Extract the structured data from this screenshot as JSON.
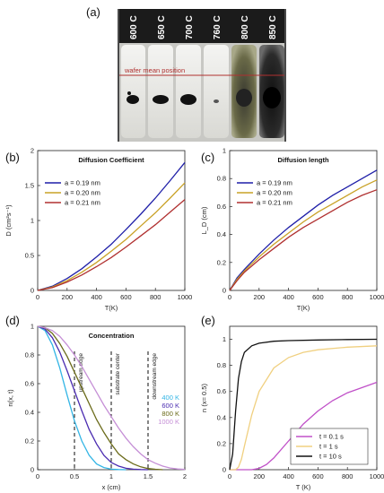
{
  "panels": {
    "a": {
      "letter": "(a)",
      "temperature_labels": [
        "600 C",
        "650 C",
        "700 C",
        "760 C",
        "800 C",
        "850 C"
      ],
      "annotation": "wafer mean position"
    },
    "b": {
      "letter": "(b)"
    },
    "c": {
      "letter": "(c)"
    },
    "d": {
      "letter": "(d)"
    },
    "e": {
      "letter": "(e)"
    }
  },
  "chart_data": [
    {
      "id": "b",
      "type": "line",
      "title": "Diffusion Coefficient",
      "xlabel": "T(K)",
      "ylabel": "D (cm²s⁻¹)",
      "xlim": [
        0,
        1000
      ],
      "ylim": [
        0,
        2
      ],
      "xticks": [
        "0",
        "200",
        "400",
        "600",
        "800",
        "1000"
      ],
      "yticks": [
        "0",
        "0.5",
        "1",
        "1.5",
        "2"
      ],
      "legend": "top-left",
      "series": [
        {
          "name": "a = 0.19 nm",
          "color": "#1f1fa8",
          "x": [
            0,
            100,
            200,
            300,
            400,
            500,
            600,
            700,
            800,
            900,
            1000
          ],
          "y": [
            0,
            0.06,
            0.17,
            0.31,
            0.48,
            0.66,
            0.87,
            1.09,
            1.32,
            1.57,
            1.83
          ]
        },
        {
          "name": "a = 0.20 nm",
          "color": "#c9a227",
          "x": [
            0,
            100,
            200,
            300,
            400,
            500,
            600,
            700,
            800,
            900,
            1000
          ],
          "y": [
            0,
            0.05,
            0.14,
            0.26,
            0.4,
            0.56,
            0.73,
            0.92,
            1.11,
            1.32,
            1.54
          ]
        },
        {
          "name": "a = 0.21 nm",
          "color": "#b03030",
          "x": [
            0,
            100,
            200,
            300,
            400,
            500,
            600,
            700,
            800,
            900,
            1000
          ],
          "y": [
            0,
            0.04,
            0.12,
            0.22,
            0.34,
            0.47,
            0.62,
            0.78,
            0.94,
            1.12,
            1.3
          ]
        }
      ]
    },
    {
      "id": "c",
      "type": "line",
      "title": "Diffusion length",
      "xlabel": "T(K)",
      "ylabel": "L_D (cm)",
      "xlim": [
        0,
        1000
      ],
      "ylim": [
        0,
        1
      ],
      "xticks": [
        "0",
        "200",
        "400",
        "600",
        "800",
        "1000"
      ],
      "yticks": [
        "0",
        "0.2",
        "0.4",
        "0.6",
        "0.8",
        "1"
      ],
      "legend": "top-left",
      "series": [
        {
          "name": "a = 0.19 nm",
          "color": "#1f1fa8",
          "x": [
            0,
            50,
            100,
            200,
            300,
            400,
            500,
            600,
            700,
            800,
            900,
            1000
          ],
          "y": [
            0,
            0.09,
            0.15,
            0.26,
            0.36,
            0.45,
            0.53,
            0.61,
            0.68,
            0.74,
            0.8,
            0.86
          ]
        },
        {
          "name": "a = 0.20 nm",
          "color": "#c9a227",
          "x": [
            0,
            50,
            100,
            200,
            300,
            400,
            500,
            600,
            700,
            800,
            900,
            1000
          ],
          "y": [
            0,
            0.08,
            0.14,
            0.24,
            0.33,
            0.41,
            0.49,
            0.56,
            0.62,
            0.68,
            0.74,
            0.79
          ]
        },
        {
          "name": "a = 0.21 nm",
          "color": "#b03030",
          "x": [
            0,
            50,
            100,
            200,
            300,
            400,
            500,
            600,
            700,
            800,
            900,
            1000
          ],
          "y": [
            0,
            0.07,
            0.13,
            0.22,
            0.3,
            0.38,
            0.45,
            0.51,
            0.57,
            0.63,
            0.68,
            0.72
          ]
        }
      ]
    },
    {
      "id": "d",
      "type": "line",
      "title": "Concentration",
      "xlabel": "x (cm)",
      "ylabel": "n(x, t)",
      "xlim": [
        0,
        2
      ],
      "ylim": [
        0,
        1
      ],
      "xticks": [
        "0",
        "0.5",
        "1",
        "1.5",
        "2"
      ],
      "yticks": [
        "0",
        "0.2",
        "0.4",
        "0.6",
        "0.8",
        "1"
      ],
      "legend": "right",
      "vlines": [
        {
          "x": 0.5,
          "label": "upstream edge"
        },
        {
          "x": 1.0,
          "label": "substrate center"
        },
        {
          "x": 1.5,
          "label": "downstream edge"
        }
      ],
      "series": [
        {
          "name": "400 K",
          "color": "#33b5e5",
          "x": [
            0,
            0.1,
            0.2,
            0.3,
            0.4,
            0.5,
            0.6,
            0.7,
            0.8,
            0.9,
            1.0,
            1.1,
            1.2
          ],
          "y": [
            1,
            0.97,
            0.87,
            0.71,
            0.52,
            0.34,
            0.2,
            0.1,
            0.04,
            0.015,
            0.004,
            0.001,
            0
          ]
        },
        {
          "name": "600 K",
          "color": "#4a2bb0",
          "x": [
            0,
            0.1,
            0.2,
            0.3,
            0.4,
            0.5,
            0.6,
            0.7,
            0.8,
            0.9,
            1.0,
            1.1,
            1.2,
            1.3,
            1.4,
            1.5
          ],
          "y": [
            1,
            0.98,
            0.92,
            0.82,
            0.69,
            0.55,
            0.41,
            0.28,
            0.18,
            0.1,
            0.05,
            0.025,
            0.01,
            0.004,
            0.001,
            0
          ]
        },
        {
          "name": "800 K",
          "color": "#6b6b1a",
          "x": [
            0,
            0.1,
            0.2,
            0.3,
            0.4,
            0.5,
            0.6,
            0.7,
            0.8,
            0.9,
            1.0,
            1.1,
            1.2,
            1.3,
            1.4,
            1.5,
            1.6,
            1.7
          ],
          "y": [
            1,
            0.99,
            0.95,
            0.88,
            0.79,
            0.68,
            0.57,
            0.46,
            0.35,
            0.26,
            0.18,
            0.11,
            0.07,
            0.04,
            0.02,
            0.008,
            0.003,
            0
          ]
        },
        {
          "name": "1000 K",
          "color": "#c58fd6",
          "x": [
            0,
            0.1,
            0.2,
            0.3,
            0.4,
            0.5,
            0.6,
            0.7,
            0.8,
            0.9,
            1.0,
            1.1,
            1.2,
            1.3,
            1.4,
            1.5,
            1.6,
            1.7,
            1.8,
            1.9,
            2.0
          ],
          "y": [
            1,
            0.99,
            0.97,
            0.93,
            0.87,
            0.8,
            0.72,
            0.63,
            0.54,
            0.45,
            0.37,
            0.29,
            0.22,
            0.16,
            0.11,
            0.07,
            0.045,
            0.025,
            0.012,
            0.005,
            0.002
          ]
        }
      ]
    },
    {
      "id": "e",
      "type": "line",
      "title": "",
      "xlabel": "T (K)",
      "ylabel": "n (x= 0.5)",
      "xlim": [
        0,
        1000
      ],
      "ylim": [
        0,
        1.1
      ],
      "xticks": [
        "0",
        "200",
        "400",
        "600",
        "800",
        "1000"
      ],
      "yticks": [
        "0",
        "0.2",
        "0.4",
        "0.6",
        "0.8",
        "1"
      ],
      "legend": "bottom-right",
      "series": [
        {
          "name": "t = 0.1 s",
          "color": "#c050c8",
          "x": [
            0,
            100,
            150,
            200,
            250,
            300,
            400,
            500,
            600,
            700,
            800,
            900,
            1000
          ],
          "y": [
            0,
            0,
            0,
            0.01,
            0.04,
            0.09,
            0.22,
            0.35,
            0.45,
            0.53,
            0.59,
            0.63,
            0.67
          ]
        },
        {
          "name": "t = 1 s",
          "color": "#f0d080",
          "x": [
            0,
            40,
            60,
            80,
            100,
            150,
            200,
            300,
            400,
            500,
            600,
            800,
            1000
          ],
          "y": [
            0,
            0,
            0.02,
            0.08,
            0.18,
            0.42,
            0.6,
            0.78,
            0.86,
            0.9,
            0.92,
            0.94,
            0.95
          ]
        },
        {
          "name": "t = 10 s",
          "color": "#111111",
          "x": [
            0,
            20,
            40,
            60,
            80,
            100,
            150,
            200,
            300,
            400,
            600,
            800,
            1000
          ],
          "y": [
            0,
            0.12,
            0.45,
            0.7,
            0.83,
            0.9,
            0.95,
            0.97,
            0.985,
            0.99,
            0.995,
            0.998,
            1.0
          ]
        }
      ]
    }
  ]
}
